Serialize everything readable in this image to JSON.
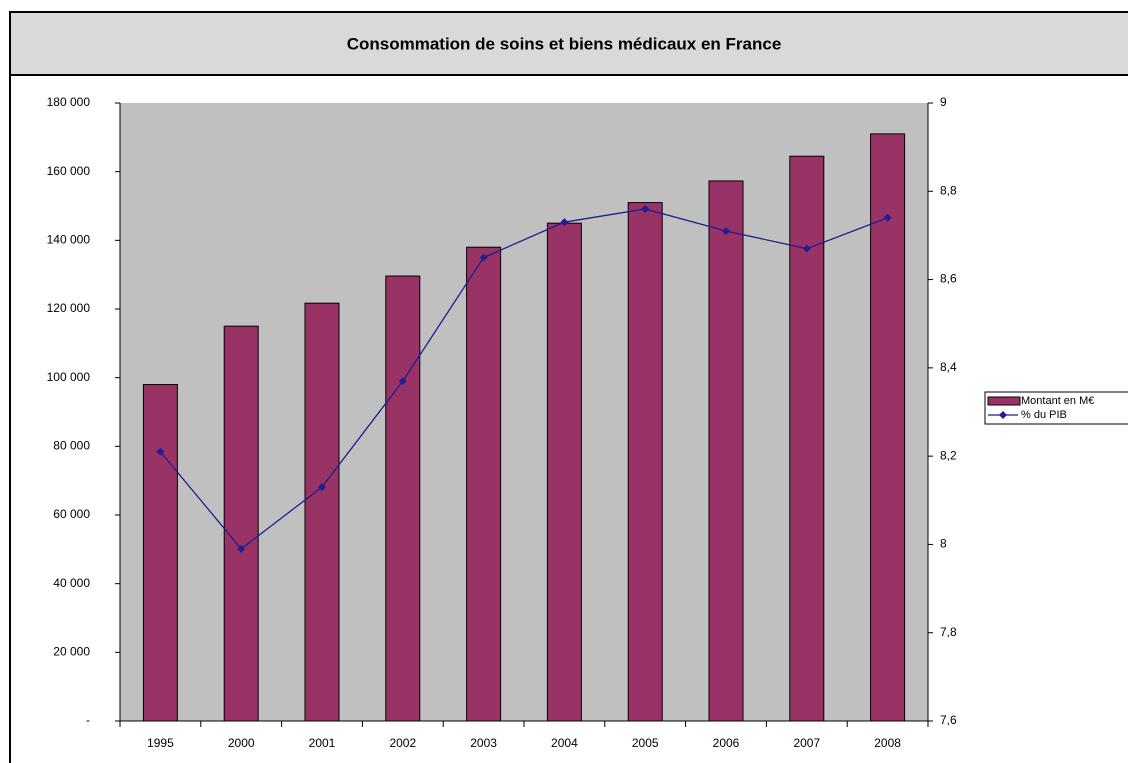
{
  "chart_data": {
    "type": "bar",
    "title": "Consommation de soins et biens médicaux en France",
    "categories": [
      "1995",
      "2000",
      "2001",
      "2002",
      "2003",
      "2004",
      "2005",
      "2006",
      "2007",
      "2008"
    ],
    "series": [
      {
        "name": "Montant en M€",
        "type": "bar",
        "color": "#993366",
        "values": [
          98000,
          115000,
          121700,
          129600,
          138000,
          145000,
          151000,
          157300,
          164500,
          171000
        ]
      },
      {
        "name": "% du PIB",
        "type": "line",
        "axis": "y2",
        "color": "#1f1f8f",
        "values": [
          8.21,
          7.99,
          8.13,
          8.37,
          8.65,
          8.73,
          8.76,
          8.71,
          8.67,
          8.74
        ]
      }
    ],
    "ylim": [
      0,
      180000
    ],
    "yticks": [
      {
        "value": 0,
        "label": "-"
      },
      {
        "value": 20000,
        "label": "20 000"
      },
      {
        "value": 40000,
        "label": "40 000"
      },
      {
        "value": 60000,
        "label": "60 000"
      },
      {
        "value": 80000,
        "label": "80 000"
      },
      {
        "value": 100000,
        "label": "100 000"
      },
      {
        "value": 120000,
        "label": "120 000"
      },
      {
        "value": 140000,
        "label": "140 000"
      },
      {
        "value": 160000,
        "label": "160 000"
      },
      {
        "value": 180000,
        "label": "180 000"
      }
    ],
    "y2lim": [
      7.6,
      9
    ],
    "y2ticks": [
      {
        "value": 7.6,
        "label": "7,6"
      },
      {
        "value": 7.8,
        "label": "7,8"
      },
      8,
      {
        "value": 8.2,
        "label": "8,2"
      },
      {
        "value": 8.4,
        "label": "8,4"
      },
      {
        "value": 8.6,
        "label": "8,6"
      },
      {
        "value": 8.8,
        "label": "8,8"
      },
      9
    ],
    "plot_background": "#c0c0c0"
  }
}
